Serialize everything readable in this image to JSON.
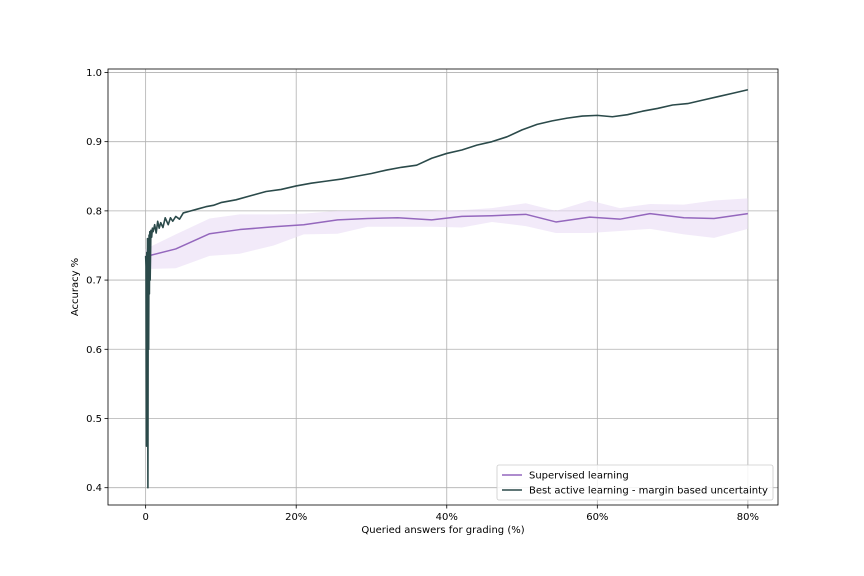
{
  "chart_data": {
    "type": "line",
    "title": "",
    "xlabel": "Queried answers for grading (%)",
    "ylabel": "Accuracy %",
    "xlim": [
      -5,
      84
    ],
    "ylim": [
      0.375,
      1.005
    ],
    "grid": true,
    "legend_position": "bottom-right",
    "x_ticks": [
      {
        "value": 0,
        "label": "0"
      },
      {
        "value": 20,
        "label": "20%"
      },
      {
        "value": 40,
        "label": "40%"
      },
      {
        "value": 60,
        "label": "60%"
      },
      {
        "value": 80,
        "label": "80%"
      }
    ],
    "y_ticks": [
      {
        "value": 0.4,
        "label": "0.4"
      },
      {
        "value": 0.5,
        "label": "0.5"
      },
      {
        "value": 0.6,
        "label": "0.6"
      },
      {
        "value": 0.7,
        "label": "0.7"
      },
      {
        "value": 0.8,
        "label": "0.8"
      },
      {
        "value": 0.9,
        "label": "0.9"
      },
      {
        "value": 1.0,
        "label": "1.0"
      }
    ],
    "series": [
      {
        "name": "Supervised learning",
        "color": "#9467bd",
        "band_color": "#e9dcf5",
        "x": [
          0,
          4,
          8.5,
          12.5,
          17,
          21,
          25.5,
          29.5,
          33.5,
          38,
          42,
          46,
          50.5,
          54.5,
          59,
          63,
          67,
          71.5,
          75.5,
          80
        ],
        "y": [
          0.734,
          0.745,
          0.767,
          0.773,
          0.777,
          0.78,
          0.787,
          0.789,
          0.79,
          0.787,
          0.792,
          0.793,
          0.795,
          0.784,
          0.791,
          0.788,
          0.796,
          0.79,
          0.789,
          0.796
        ],
        "lower": [
          0.716,
          0.717,
          0.735,
          0.738,
          0.75,
          0.766,
          0.767,
          0.777,
          0.777,
          0.777,
          0.776,
          0.784,
          0.778,
          0.768,
          0.768,
          0.771,
          0.774,
          0.766,
          0.761,
          0.774
        ],
        "upper": [
          0.745,
          0.766,
          0.789,
          0.795,
          0.795,
          0.796,
          0.8,
          0.8,
          0.8,
          0.8,
          0.801,
          0.804,
          0.811,
          0.8,
          0.815,
          0.804,
          0.81,
          0.809,
          0.815,
          0.818
        ]
      },
      {
        "name": "Best active learning - margin based uncertainty",
        "color": "#2b4a4a",
        "x": [
          0,
          0.05,
          0.1,
          0.15,
          0.2,
          0.25,
          0.3,
          0.35,
          0.4,
          0.45,
          0.5,
          0.55,
          0.6,
          0.7,
          0.8,
          0.9,
          1.0,
          1.2,
          1.4,
          1.6,
          1.8,
          2.0,
          2.3,
          2.6,
          3.0,
          3.3,
          3.6,
          4.0,
          4.5,
          5.0,
          6,
          7,
          8,
          9,
          10,
          12,
          14,
          16,
          18,
          20,
          22,
          24,
          26,
          28,
          30,
          32,
          34,
          36,
          38,
          40,
          42,
          44,
          46,
          48,
          50,
          52,
          54,
          56,
          58,
          60,
          62,
          64,
          66,
          68,
          70,
          72,
          74,
          76,
          78,
          80
        ],
        "y": [
          0.735,
          0.72,
          0.46,
          0.74,
          0.5,
          0.76,
          0.4,
          0.755,
          0.6,
          0.765,
          0.68,
          0.77,
          0.7,
          0.772,
          0.762,
          0.775,
          0.77,
          0.78,
          0.768,
          0.785,
          0.775,
          0.783,
          0.776,
          0.79,
          0.78,
          0.79,
          0.785,
          0.792,
          0.788,
          0.797,
          0.8,
          0.803,
          0.806,
          0.808,
          0.812,
          0.816,
          0.822,
          0.828,
          0.831,
          0.836,
          0.84,
          0.843,
          0.846,
          0.85,
          0.854,
          0.859,
          0.863,
          0.866,
          0.876,
          0.883,
          0.888,
          0.895,
          0.9,
          0.907,
          0.917,
          0.925,
          0.93,
          0.934,
          0.937,
          0.938,
          0.936,
          0.939,
          0.944,
          0.948,
          0.953,
          0.955,
          0.96,
          0.965,
          0.97,
          0.975
        ]
      }
    ]
  }
}
